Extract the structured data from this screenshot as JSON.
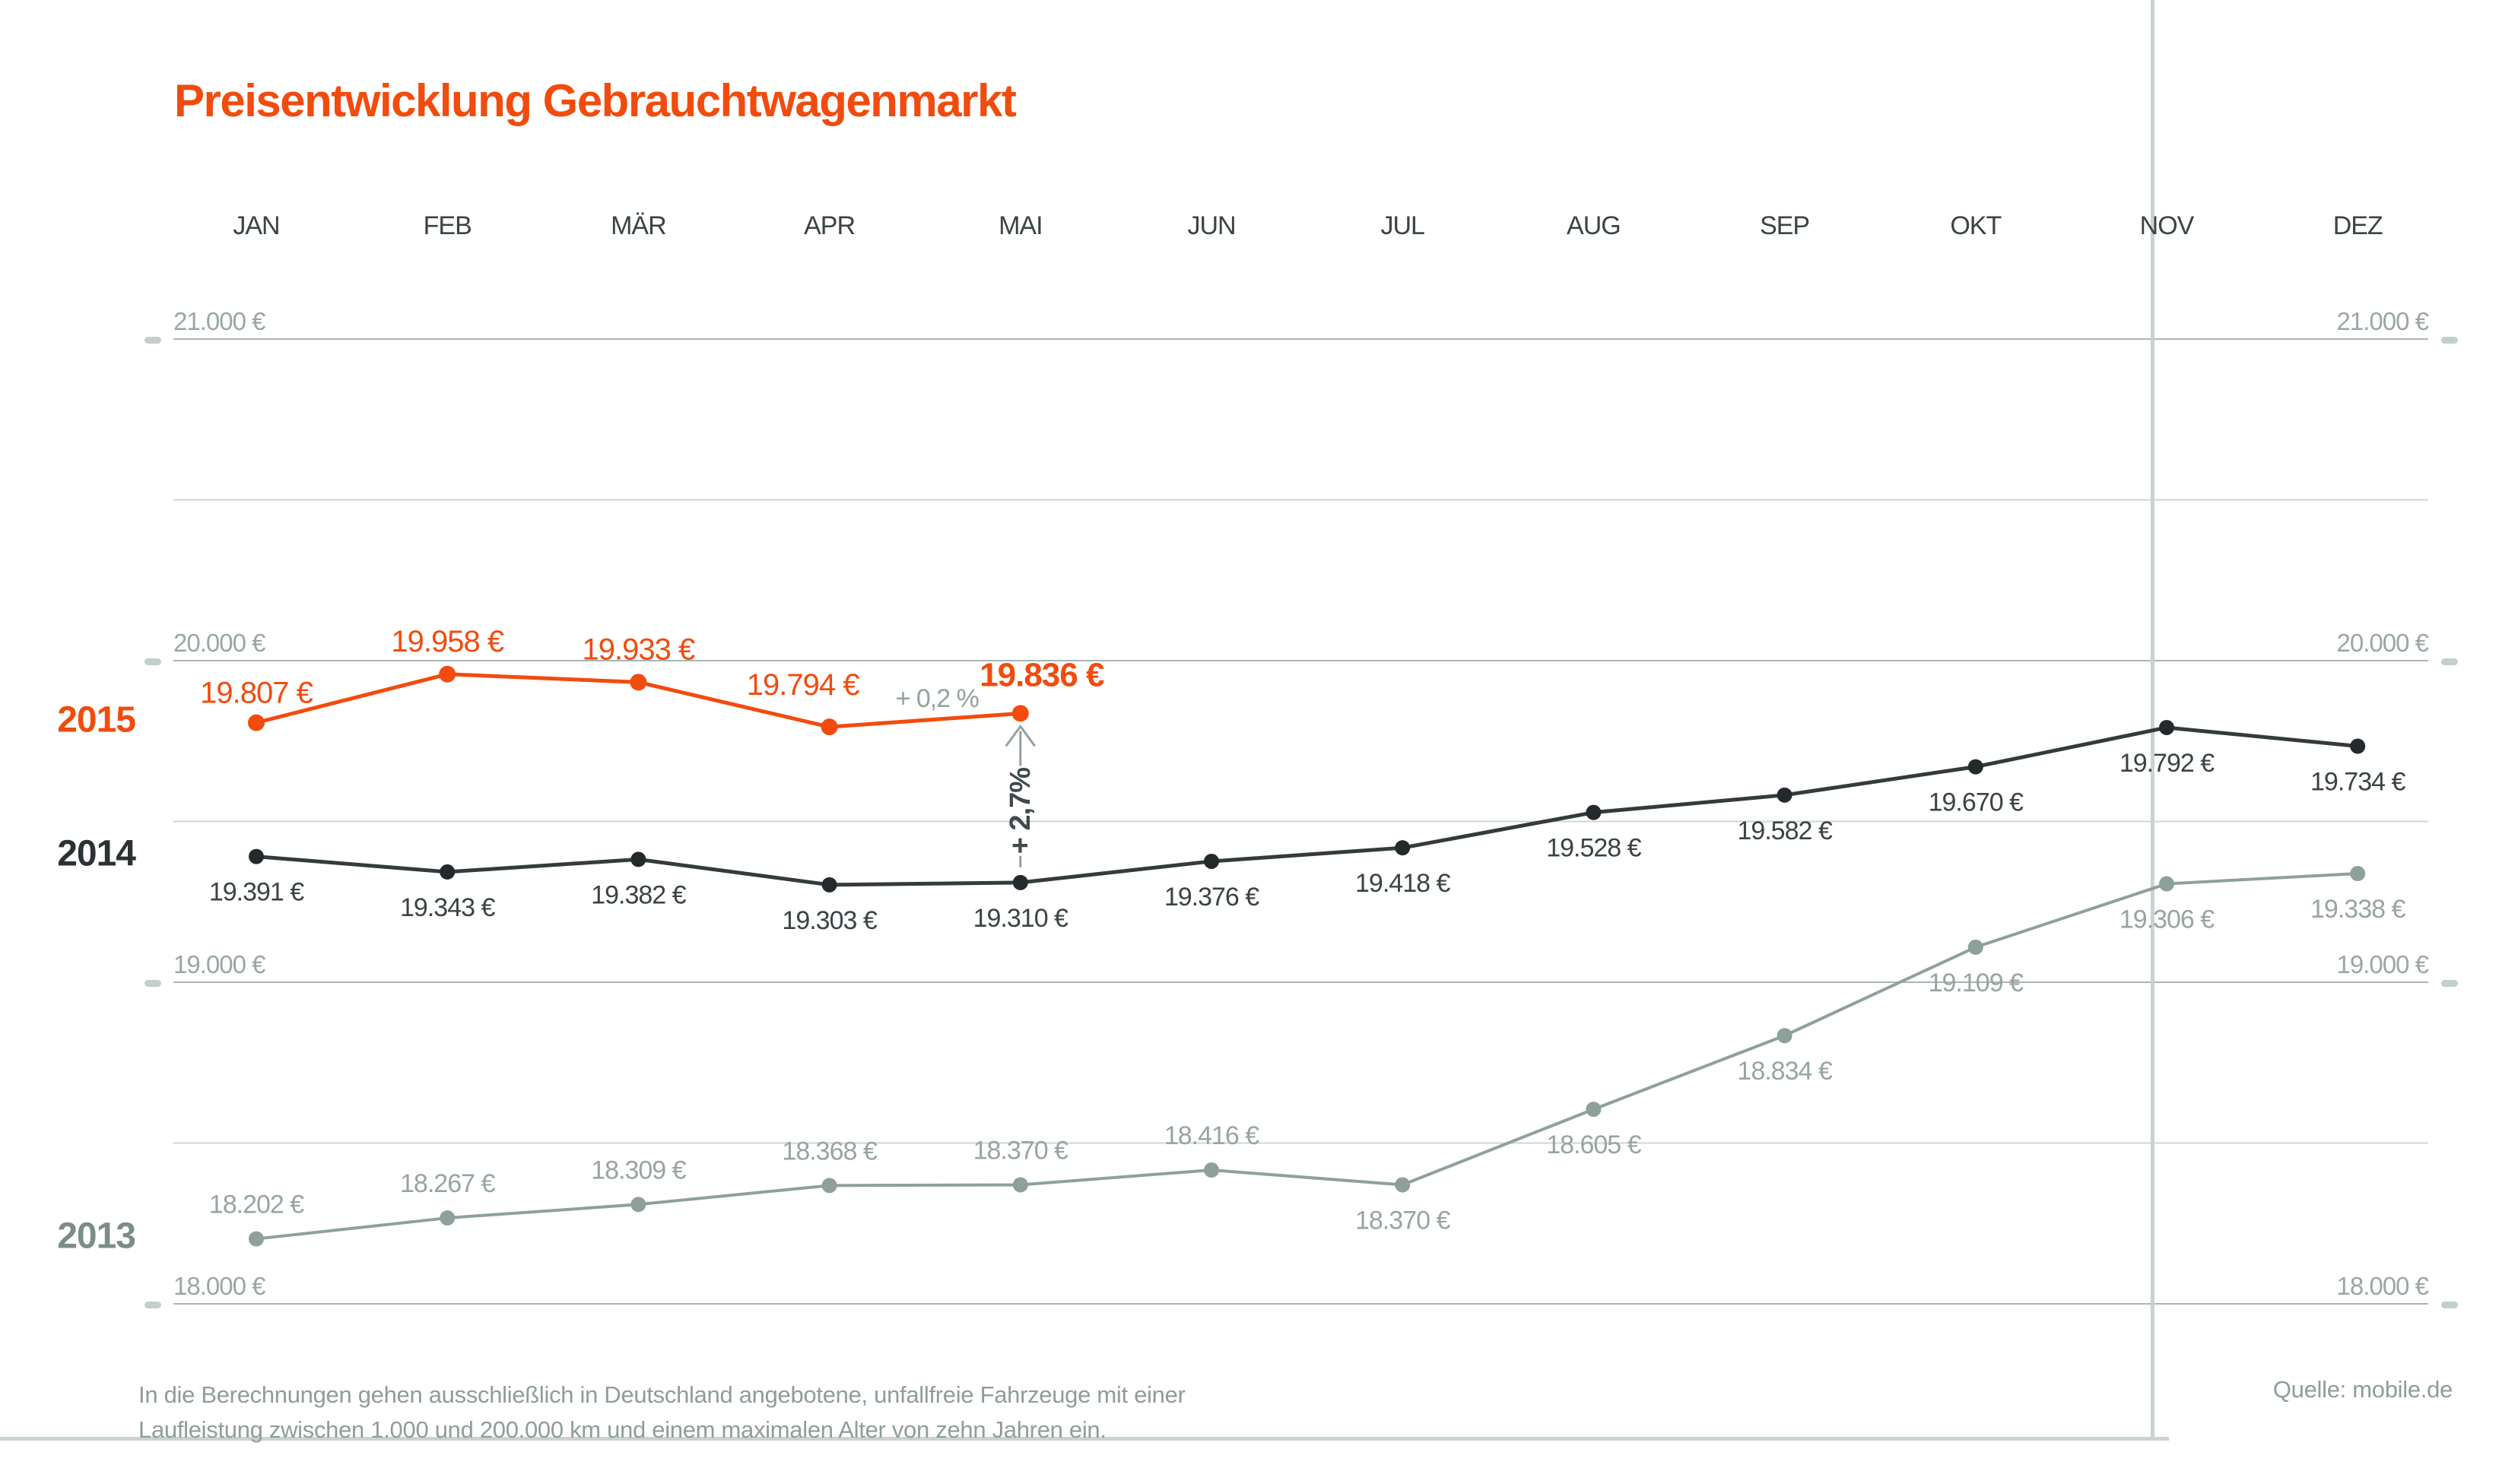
{
  "title": "Preisentwicklung Gebrauchtwagenmarkt",
  "source": "Quelle: mobile.de",
  "footnote": {
    "line1": "In die Berechnungen gehen ausschließlich in Deutschland angebotene, unfallfreie Fahrzeuge mit einer",
    "line2": "Laufleistung zwischen 1.000 und 200.000 km und einem maximalen Alter von zehn Jahren ein."
  },
  "colors": {
    "accent_orange": "#F24B0E",
    "dark_line": "#343B3D",
    "dark_dot": "#24292B",
    "dark_label": "#3A4345",
    "year_2014": "#2B3234",
    "gray_series": "#8FA09C",
    "gray_label": "#97A5A2",
    "year_2013": "#7C8D89",
    "axis_label": "#9AA6A6",
    "grid_major": "#A9B5B5",
    "grid_minor": "#CFD6D6",
    "tick_dash": "#C3CECE",
    "ref_line": "#C9D3CF",
    "footnote_text": "#8E9D9A",
    "annotation_gray": "#94A19F",
    "annotation_dark": "#40494B"
  },
  "chart_data": {
    "type": "line",
    "title": "Preisentwicklung Gebrauchtwagenmarkt",
    "categories": [
      "JAN",
      "FEB",
      "MÄR",
      "APR",
      "MAI",
      "JUN",
      "JUL",
      "AUG",
      "SEP",
      "OKT",
      "NOV",
      "DEZ"
    ],
    "y_axis": {
      "unit": "€",
      "ylim": [
        17900,
        21250
      ],
      "grid": true,
      "major_ticks": [
        {
          "value": 21000,
          "label": "21.000 €"
        },
        {
          "value": 20000,
          "label": "20.000 €"
        },
        {
          "value": 19000,
          "label": "19.000 €"
        },
        {
          "value": 18000,
          "label": "18.000 €"
        }
      ],
      "minor_gridlines": [
        20500,
        19500,
        18500
      ]
    },
    "legend_position": "left-inline-year-labels",
    "series": [
      {
        "name": "2013",
        "values": [
          18202,
          18267,
          18309,
          18368,
          18370,
          18416,
          18370,
          18605,
          18834,
          19109,
          19306,
          19338
        ],
        "labels": [
          "18.202 €",
          "18.267 €",
          "18.309 €",
          "18.368 €",
          "18.370 €",
          "18.416 €",
          "18.370 €",
          "18.605 €",
          "18.834 €",
          "19.109 €",
          "19.306 €",
          "19.338 €"
        ]
      },
      {
        "name": "2014",
        "values": [
          19391,
          19343,
          19382,
          19303,
          19310,
          19376,
          19418,
          19528,
          19582,
          19670,
          19792,
          19734
        ],
        "labels": [
          "19.391 €",
          "19.343 €",
          "19.382 €",
          "19.303 €",
          "19.310 €",
          "19.376 €",
          "19.418 €",
          "19.528 €",
          "19.582 €",
          "19.670 €",
          "19.792 €",
          "19.734 €"
        ]
      },
      {
        "name": "2015",
        "values": [
          19807,
          19958,
          19933,
          19794,
          19836
        ],
        "labels": [
          "19.807 €",
          "19.958 €",
          "19.933 €",
          "19.794 €",
          "19.836 €"
        ]
      }
    ],
    "annotations": {
      "month_over_month": "+ 0,2 %",
      "year_over_year": "+ 2,7%"
    },
    "reference_line_month": "NOV"
  }
}
